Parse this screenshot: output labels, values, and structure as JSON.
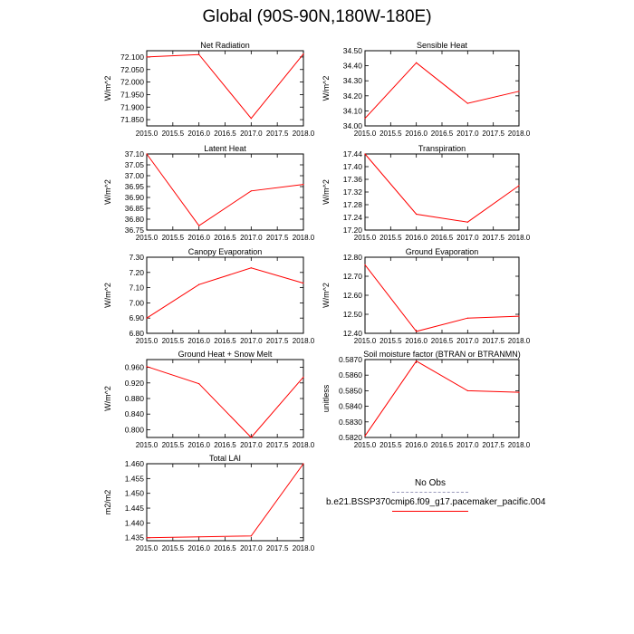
{
  "figure": {
    "title": "Global (90S-90N,180W-180E)"
  },
  "legend": {
    "obs_label": "No Obs",
    "case_label": "b.e21.BSSP370cmip6.f09_g17.pacemaker_pacific.004",
    "obs_color": "#9999bb",
    "case_color": "#ff0000"
  },
  "chart_data": [
    {
      "type": "line",
      "title": "Net Radiation",
      "ylabel": "W/m^2",
      "x": [
        2015.0,
        2016.0,
        2017.0,
        2018.0
      ],
      "values": [
        72.1,
        72.11,
        71.855,
        72.112
      ],
      "xlim": [
        2015.0,
        2018.0
      ],
      "ylim": [
        71.825,
        72.125
      ],
      "yticks": [
        "72.100",
        "72.050",
        "72.000",
        "71.950",
        "71.900",
        "71.850"
      ],
      "xticks": [
        "2015.0",
        "2015.5",
        "2016.0",
        "2016.5",
        "2017.0",
        "2017.5",
        "2018.0"
      ]
    },
    {
      "type": "line",
      "title": "Sensible Heat",
      "ylabel": "W/m^2",
      "x": [
        2015.0,
        2016.0,
        2017.0,
        2018.0
      ],
      "values": [
        34.05,
        34.42,
        34.15,
        34.23
      ],
      "xlim": [
        2015.0,
        2018.0
      ],
      "ylim": [
        34.0,
        34.5
      ],
      "yticks": [
        "34.50",
        "34.40",
        "34.30",
        "34.20",
        "34.10",
        "34.00"
      ],
      "xticks": [
        "2015.0",
        "2015.5",
        "2016.0",
        "2016.5",
        "2017.0",
        "2017.5",
        "2018.0"
      ]
    },
    {
      "type": "line",
      "title": "Latent Heat",
      "ylabel": "W/m^2",
      "x": [
        2015.0,
        2016.0,
        2017.0,
        2018.0
      ],
      "values": [
        37.1,
        36.77,
        36.93,
        36.96
      ],
      "xlim": [
        2015.0,
        2018.0
      ],
      "ylim": [
        36.75,
        37.1
      ],
      "yticks": [
        "37.10",
        "37.05",
        "37.00",
        "36.95",
        "36.90",
        "36.85",
        "36.80",
        "36.75"
      ],
      "xticks": [
        "2015.0",
        "2015.5",
        "2016.0",
        "2016.5",
        "2017.0",
        "2017.5",
        "2018.0"
      ]
    },
    {
      "type": "line",
      "title": "Transpiration",
      "ylabel": "W/m^2",
      "x": [
        2015.0,
        2016.0,
        2017.0,
        2018.0
      ],
      "values": [
        17.44,
        17.25,
        17.225,
        17.34
      ],
      "xlim": [
        2015.0,
        2018.0
      ],
      "ylim": [
        17.2,
        17.44
      ],
      "yticks": [
        "17.44",
        "17.40",
        "17.36",
        "17.32",
        "17.28",
        "17.24",
        "17.20"
      ],
      "xticks": [
        "2015.0",
        "2015.5",
        "2016.0",
        "2016.5",
        "2017.0",
        "2017.5",
        "2018.0"
      ]
    },
    {
      "type": "line",
      "title": "Canopy Evaporation",
      "ylabel": "W/m^2",
      "x": [
        2015.0,
        2016.0,
        2017.0,
        2018.0
      ],
      "values": [
        6.9,
        7.12,
        7.23,
        7.13
      ],
      "xlim": [
        2015.0,
        2018.0
      ],
      "ylim": [
        6.8,
        7.3
      ],
      "yticks": [
        "7.30",
        "7.20",
        "7.10",
        "7.00",
        "6.90",
        "6.80"
      ],
      "xticks": [
        "2015.0",
        "2015.5",
        "2016.0",
        "2016.5",
        "2017.0",
        "2017.5",
        "2018.0"
      ]
    },
    {
      "type": "line",
      "title": "Ground Evaporation",
      "ylabel": "W/m^2",
      "x": [
        2015.0,
        2016.0,
        2017.0,
        2018.0
      ],
      "values": [
        12.76,
        12.41,
        12.48,
        12.49
      ],
      "xlim": [
        2015.0,
        2018.0
      ],
      "ylim": [
        12.4,
        12.8
      ],
      "yticks": [
        "12.80",
        "12.70",
        "12.60",
        "12.50",
        "12.40"
      ],
      "xticks": [
        "2015.0",
        "2015.5",
        "2016.0",
        "2016.5",
        "2017.0",
        "2017.5",
        "2018.0"
      ]
    },
    {
      "type": "line",
      "title": "Ground Heat + Snow Melt",
      "ylabel": "W/m^2",
      "x": [
        2015.0,
        2016.0,
        2017.0,
        2018.0
      ],
      "values": [
        0.962,
        0.918,
        0.78,
        0.935
      ],
      "xlim": [
        2015.0,
        2018.0
      ],
      "ylim": [
        0.78,
        0.98
      ],
      "yticks": [
        "0.960",
        "0.920",
        "0.880",
        "0.840",
        "0.800"
      ],
      "xticks": [
        "2015.0",
        "2015.5",
        "2016.0",
        "2016.5",
        "2017.0",
        "2017.5",
        "2018.0"
      ]
    },
    {
      "type": "line",
      "title": "Soil moisture factor (BTRAN or BTRANMN)",
      "ylabel": "unitless",
      "x": [
        2015.0,
        2016.0,
        2017.0,
        2018.0
      ],
      "values": [
        0.5821,
        0.5869,
        0.585,
        0.5849
      ],
      "xlim": [
        2015.0,
        2018.0
      ],
      "ylim": [
        0.582,
        0.587
      ],
      "yticks": [
        "0.5870",
        "0.5860",
        "0.5850",
        "0.5840",
        "0.5830",
        "0.5820"
      ],
      "xticks": [
        "2015.0",
        "2015.5",
        "2016.0",
        "2016.5",
        "2017.0",
        "2017.5",
        "2018.0"
      ]
    },
    {
      "type": "line",
      "title": "Total LAI",
      "ylabel": "m2/m2",
      "x": [
        2015.0,
        2016.0,
        2017.0,
        2018.0
      ],
      "values": [
        1.435,
        1.4353,
        1.4356,
        1.46
      ],
      "xlim": [
        2015.0,
        2018.0
      ],
      "ylim": [
        1.434,
        1.46
      ],
      "yticks": [
        "1.460",
        "1.455",
        "1.450",
        "1.445",
        "1.440",
        "1.435"
      ],
      "xticks": [
        "2015.0",
        "2015.5",
        "2016.0",
        "2016.5",
        "2017.0",
        "2017.5",
        "2018.0"
      ]
    }
  ]
}
